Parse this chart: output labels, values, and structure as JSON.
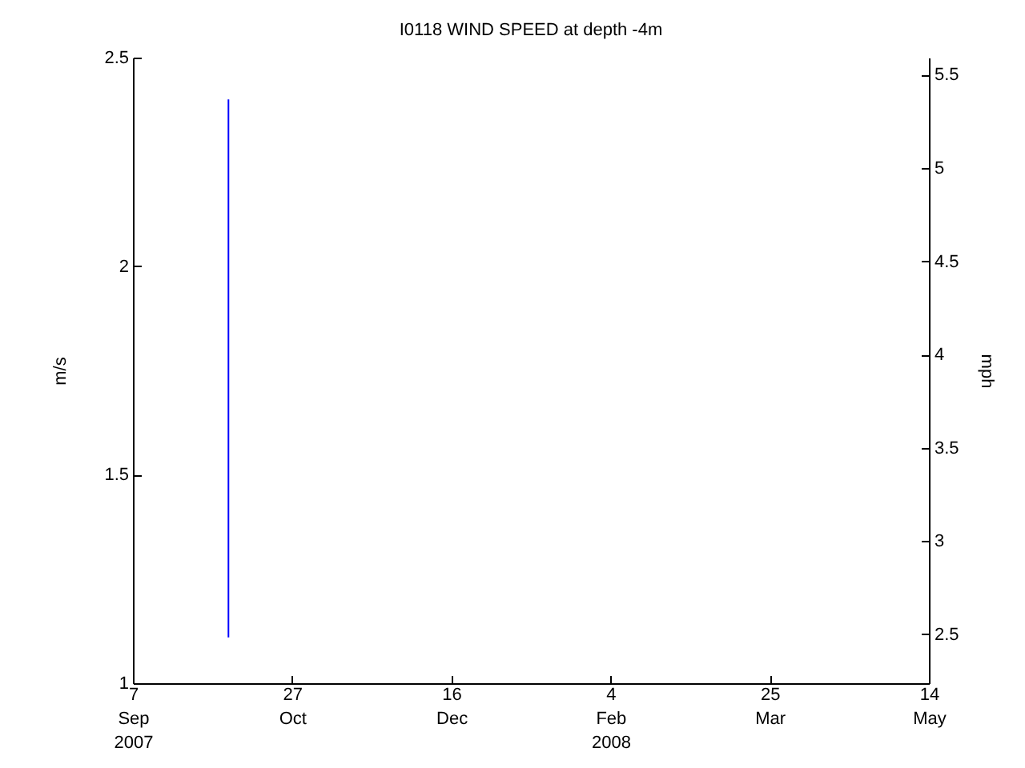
{
  "chart_data": {
    "type": "line",
    "title": "I0118 WIND SPEED at depth -4m",
    "ylabel": "m/s",
    "y2label": "mph",
    "x": [
      "2007-10-07",
      "2007-10-07"
    ],
    "series": [
      {
        "color": "#0000ff",
        "values": [
          1.11,
          2.4
        ]
      }
    ],
    "xlim": [
      "2007-09-07",
      "2008-05-14"
    ],
    "xticks": [
      {
        "value": "2007-09-07",
        "label": "7\nSep\n2007"
      },
      {
        "value": "2007-10-27",
        "label": "27\nOct"
      },
      {
        "value": "2007-12-16",
        "label": "16\nDec"
      },
      {
        "value": "2008-02-04",
        "label": "4\nFeb\n2008"
      },
      {
        "value": "2008-03-25",
        "label": "25\nMar"
      },
      {
        "value": "2008-05-14",
        "label": "14\nMay"
      }
    ],
    "ylim": [
      1,
      2.5
    ],
    "yticks": [
      1,
      1.5,
      2,
      2.5
    ],
    "y2lim": [
      2.237,
      5.592
    ],
    "y2ticks": [
      2.5,
      3,
      3.5,
      4,
      4.5,
      5,
      5.5
    ],
    "grid": false
  }
}
